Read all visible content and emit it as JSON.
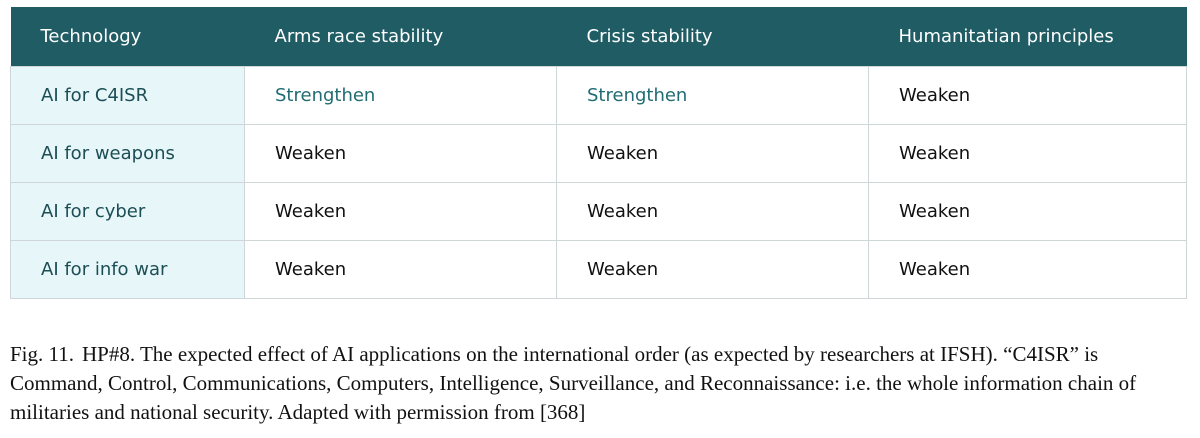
{
  "colors": {
    "header_bg": "#1f5c64",
    "header_text": "#ffffff",
    "first_col_bg": "#e7f6f8",
    "strengthen_text": "#1f6c72",
    "border": "#cfd6d8"
  },
  "table": {
    "headers": [
      "Technology",
      "Arms race stability",
      "Crisis stability",
      "Humanitatian principles"
    ],
    "rows": [
      {
        "technology": "AI for C4ISR",
        "arms_race": "Strengthen",
        "crisis": "Strengthen",
        "humanitarian": "Weaken"
      },
      {
        "technology": "AI for weapons",
        "arms_race": "Weaken",
        "crisis": "Weaken",
        "humanitarian": "Weaken"
      },
      {
        "technology": "AI for cyber",
        "arms_race": "Weaken",
        "crisis": "Weaken",
        "humanitarian": "Weaken"
      },
      {
        "technology": "AI for info war",
        "arms_race": "Weaken",
        "crisis": "Weaken",
        "humanitarian": "Weaken"
      }
    ]
  },
  "caption": {
    "label": "Fig. 11.",
    "text": "HP#8. The expected effect of AI applications on the international order (as expected by researchers at IFSH). “C4ISR” is Command, Control, Communications, Computers, Intelligence, Surveillance, and Reconnaissance: i.e. the whole information chain of militaries and national security. Adapted with permission from [368]"
  }
}
